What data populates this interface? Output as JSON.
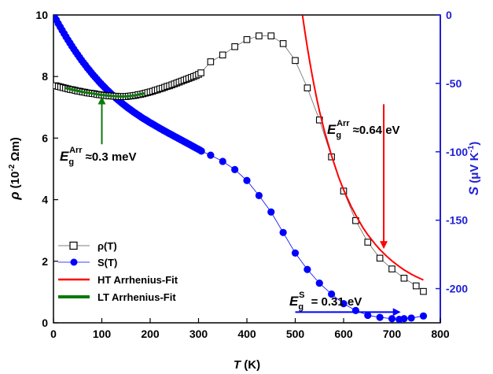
{
  "chart_data": {
    "type": "scatter",
    "colors": {
      "rho": "#000000",
      "S": "#0000ff",
      "right_axis": "#1f1fd6",
      "ht_fit": "#ff0000",
      "lt_fit": "#0b7a0b",
      "gap_arrow": "#0000ff"
    },
    "x_axis": {
      "label": "T",
      "unit": "(K)",
      "range": [
        0,
        800
      ],
      "ticks": [
        0,
        100,
        200,
        300,
        400,
        500,
        600,
        700,
        800
      ]
    },
    "y_axis_left": {
      "label_symbol": "ρ",
      "label_unit_prefix": "(10",
      "label_exponent": "-2",
      "label_unit_suffix": " Ωm)",
      "range": [
        0,
        10
      ],
      "ticks": [
        0,
        2,
        4,
        6,
        8,
        10
      ]
    },
    "y_axis_right": {
      "label_symbol": "S",
      "label_unit_prefix": "(μV K",
      "label_exponent": "-1",
      "label_unit_suffix": ")",
      "range": [
        -225,
        0
      ],
      "ticks": [
        0,
        -50,
        -100,
        -150,
        -200
      ]
    },
    "legend": {
      "placement": "bottom-left",
      "entries": [
        {
          "key": "rho",
          "label": "ρ(T)",
          "marker": "open-square",
          "color": "#000000"
        },
        {
          "key": "S",
          "label": "S(T)",
          "marker": "filled-circle",
          "color": "#0000ff"
        },
        {
          "key": "ht_fit",
          "label": "HT Arrhenius-Fit",
          "marker": "line",
          "color": "#ff0000"
        },
        {
          "key": "lt_fit",
          "label": "LT Arrhenius-Fit",
          "marker": "line",
          "color": "#0b7a0b"
        }
      ]
    },
    "series": [
      {
        "name": "ρ(T)",
        "axis": "left",
        "x": [
          5,
          10,
          15,
          20,
          25,
          30,
          35,
          40,
          45,
          50,
          55,
          60,
          65,
          70,
          75,
          80,
          85,
          90,
          95,
          100,
          105,
          110,
          115,
          120,
          125,
          130,
          135,
          140,
          145,
          150,
          155,
          160,
          165,
          170,
          175,
          180,
          185,
          190,
          195,
          200,
          205,
          210,
          215,
          220,
          225,
          230,
          235,
          240,
          245,
          250,
          255,
          260,
          265,
          270,
          275,
          280,
          285,
          290,
          295,
          300,
          305,
          325,
          350,
          375,
          400,
          425,
          450,
          475,
          500,
          525,
          550,
          575,
          600,
          625,
          650,
          675,
          700,
          725,
          750,
          765
        ],
        "y": [
          7.7,
          7.68,
          7.66,
          7.64,
          7.62,
          7.6,
          7.58,
          7.57,
          7.55,
          7.53,
          7.52,
          7.5,
          7.49,
          7.47,
          7.46,
          7.45,
          7.44,
          7.42,
          7.41,
          7.4,
          7.39,
          7.38,
          7.37,
          7.37,
          7.36,
          7.36,
          7.35,
          7.35,
          7.35,
          7.35,
          7.36,
          7.37,
          7.38,
          7.39,
          7.41,
          7.42,
          7.44,
          7.46,
          7.48,
          7.5,
          7.52,
          7.55,
          7.57,
          7.6,
          7.62,
          7.65,
          7.68,
          7.7,
          7.73,
          7.76,
          7.79,
          7.82,
          7.85,
          7.88,
          7.91,
          7.94,
          7.97,
          8.0,
          8.03,
          8.07,
          8.12,
          8.48,
          8.7,
          8.97,
          9.2,
          9.32,
          9.32,
          9.07,
          8.52,
          7.63,
          6.59,
          5.39,
          4.28,
          3.32,
          2.62,
          2.1,
          1.75,
          1.45,
          1.2,
          1.02
        ]
      },
      {
        "name": "S(T)",
        "axis": "right",
        "x": [
          2,
          6,
          10,
          14,
          18,
          22,
          26,
          30,
          34,
          38,
          42,
          46,
          50,
          54,
          58,
          62,
          66,
          70,
          74,
          78,
          82,
          86,
          90,
          94,
          98,
          102,
          106,
          110,
          114,
          118,
          122,
          126,
          130,
          134,
          138,
          142,
          146,
          150,
          154,
          158,
          162,
          166,
          170,
          174,
          178,
          182,
          186,
          190,
          194,
          198,
          202,
          206,
          210,
          214,
          218,
          222,
          226,
          230,
          234,
          238,
          242,
          246,
          250,
          254,
          258,
          262,
          266,
          270,
          274,
          278,
          282,
          286,
          290,
          294,
          298,
          302,
          306,
          325,
          350,
          375,
          400,
          425,
          450,
          475,
          500,
          525,
          550,
          575,
          600,
          625,
          650,
          675,
          700,
          715,
          725,
          740,
          765
        ],
        "y": [
          -1.2,
          -3.7,
          -6.3,
          -8.8,
          -11.2,
          -13.6,
          -16,
          -18.3,
          -20.5,
          -22.7,
          -24.9,
          -27,
          -29,
          -31,
          -33,
          -34.9,
          -36.7,
          -38.6,
          -40.3,
          -42.1,
          -43.8,
          -45.4,
          -47,
          -48.6,
          -50.1,
          -51.6,
          -53,
          -54.5,
          -55.8,
          -57.2,
          -58.5,
          -59.8,
          -61,
          -62.2,
          -63.4,
          -64.6,
          -65.7,
          -66.8,
          -67.9,
          -68.9,
          -69.9,
          -71,
          -71.9,
          -72.9,
          -73.8,
          -74.8,
          -75.7,
          -76.5,
          -77.4,
          -78.3,
          -79.1,
          -79.9,
          -80.8,
          -81.6,
          -82.4,
          -83.2,
          -84,
          -84.8,
          -85.6,
          -86.4,
          -87.1,
          -87.9,
          -88.7,
          -89.4,
          -90.2,
          -90.9,
          -91.7,
          -92.5,
          -93.2,
          -94,
          -94.7,
          -95.5,
          -96.3,
          -97.1,
          -97.8,
          -98.6,
          -99.5,
          -102.5,
          -107,
          -113,
          -121,
          -132,
          -144,
          -159,
          -174,
          -186,
          -196,
          -204,
          -211,
          -216,
          -219.5,
          -221,
          -222,
          -222.5,
          -222,
          -221.5,
          -220
        ]
      },
      {
        "name": "HT Arrhenius-Fit",
        "axis": "left",
        "style": "line",
        "x": [
          515,
          520,
          525,
          530,
          535,
          540,
          545,
          550,
          560,
          575,
          590,
          600,
          615,
          625,
          640,
          650,
          665,
          675,
          690,
          700,
          715,
          725,
          740,
          750,
          765
        ],
        "y": [
          9.99,
          9.45,
          8.95,
          8.48,
          8.04,
          7.63,
          7.24,
          6.88,
          6.25,
          5.43,
          4.72,
          4.32,
          3.8,
          3.5,
          3.09,
          2.86,
          2.56,
          2.38,
          2.15,
          2.01,
          1.83,
          1.72,
          1.58,
          1.5,
          1.39
        ]
      },
      {
        "name": "LT Arrhenius-Fit",
        "axis": "left",
        "style": "line",
        "x": [
          25,
          40,
          60,
          80,
          100,
          120,
          140,
          155,
          170,
          180,
          190
        ],
        "y": [
          7.63,
          7.57,
          7.5,
          7.45,
          7.4,
          7.37,
          7.35,
          7.36,
          7.39,
          7.43,
          7.46
        ]
      }
    ],
    "annotations": [
      {
        "key": "ht",
        "base": "E",
        "sub": "g",
        "sup": "Arr",
        "value": "≈0.64 eV",
        "arrow_from": [
          683,
          7.1
        ],
        "arrow_to": [
          683,
          2.45
        ],
        "color": "#ff0000"
      },
      {
        "key": "lt",
        "base": "E",
        "sub": "g",
        "sup": "Arr",
        "value": "≈0.3 meV",
        "arrow_from": [
          100,
          5.8
        ],
        "arrow_to": [
          100,
          7.3
        ],
        "color": "#0b7a0b"
      },
      {
        "key": "s",
        "base": "E",
        "sub": "g",
        "sup": "S",
        "value": " = 0.31 eV",
        "arrow_from": [
          500,
          0.35
        ],
        "arrow_to": [
          715,
          0.35
        ],
        "color": "#0000ff"
      }
    ]
  }
}
